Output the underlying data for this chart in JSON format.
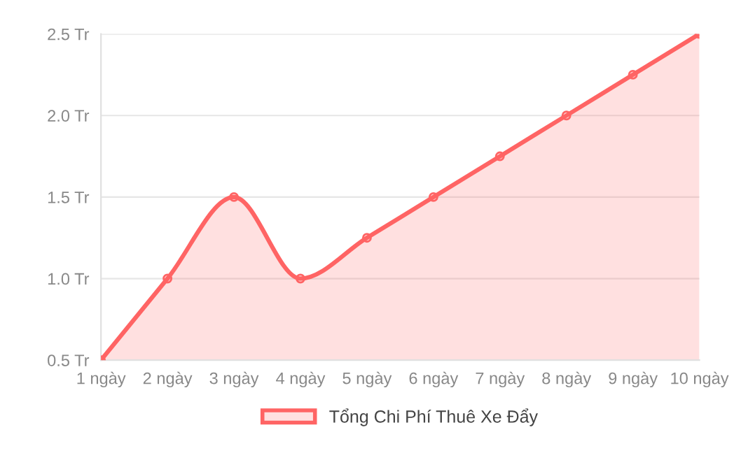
{
  "chart_data": {
    "type": "area",
    "categories": [
      "1 ngày",
      "2 ngày",
      "3 ngày",
      "4 ngày",
      "5 ngày",
      "6 ngày",
      "7 ngày",
      "8 ngày",
      "9 ngày",
      "10 ngày"
    ],
    "series": [
      {
        "name": "Tổng Chi Phí Thuê Xe Đẩy",
        "color": "#ff6464",
        "values": [
          0.5,
          1.0,
          1.5,
          1.0,
          1.25,
          1.5,
          1.75,
          2.0,
          2.25,
          2.5
        ]
      }
    ],
    "ylim": [
      0.5,
      2.5
    ],
    "yticks": [
      {
        "value": 0.5,
        "label": "0.5 Tr"
      },
      {
        "value": 1.0,
        "label": "1.0 Tr"
      },
      {
        "value": 1.5,
        "label": "1.5 Tr"
      },
      {
        "value": 2.0,
        "label": "2.0 Tr"
      },
      {
        "value": 2.5,
        "label": "2.5 Tr"
      }
    ],
    "grid": "y",
    "legend": "bottom",
    "marker": "circle",
    "line_style": "solid"
  }
}
